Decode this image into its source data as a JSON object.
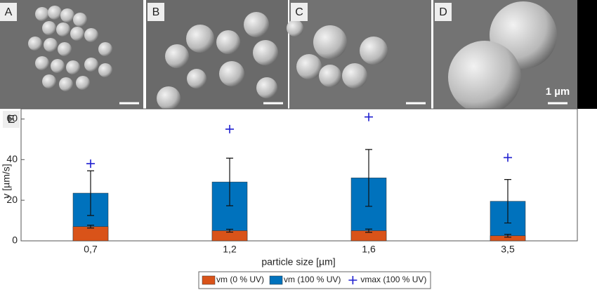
{
  "panels": [
    {
      "label": "A"
    },
    {
      "label": "B"
    },
    {
      "label": "C"
    },
    {
      "label": "D",
      "scale_label": "1 µm"
    }
  ],
  "chart_data": {
    "type": "bar",
    "panel_label": "E",
    "x_label": "particle size [µm]",
    "y_label": "v [µm/s]",
    "categories": [
      "0,7",
      "1,2",
      "1,6",
      "3,5"
    ],
    "ylim": [
      0,
      65
    ],
    "yticks": [
      0,
      20,
      40,
      60
    ],
    "series": [
      {
        "name": "vm (0 % UV)",
        "color": "#d95319",
        "mark": "bar",
        "values": [
          7,
          5,
          5,
          2.5
        ],
        "errors": [
          0.7,
          0.7,
          0.8,
          0.7
        ]
      },
      {
        "name": "vm (100 % UV)",
        "color": "#0072bd",
        "mark": "bar",
        "values": [
          23.5,
          29,
          31,
          19.5
        ],
        "errors": [
          11,
          11.7,
          14,
          10.7
        ]
      },
      {
        "name": "vmax (100 % UV)",
        "color": "#1f1fd0",
        "mark": "plus",
        "values": [
          38,
          55,
          61,
          41
        ]
      }
    ]
  }
}
